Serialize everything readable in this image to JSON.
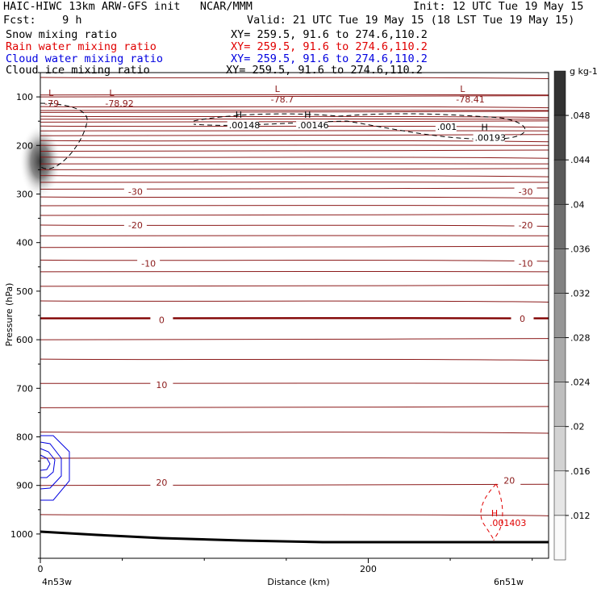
{
  "header": {
    "line1_left": "HAIC-HIWC 13km ARW-GFS init   NCAR/MMM",
    "line1_right": "Init: 12 UTC Tue 19 May 15",
    "line2_left": "Fcst:    9 h",
    "line2_right": "Valid: 21 UTC Tue 19 May 15 (18 LST Tue 19 May 15)"
  },
  "fields": [
    {
      "name": "Snow mixing ratio",
      "xy": "XY= 259.5, 91.6 to 274.6,110.2",
      "color": "#000000"
    },
    {
      "name": "Rain water mixing ratio",
      "xy": "XY= 259.5, 91.6 to 274.6,110.2",
      "color": "#e00000"
    },
    {
      "name": "Cloud water mixing ratio",
      "xy": "XY= 259.5, 91.6 to 274.6,110.2",
      "color": "#0000e0"
    },
    {
      "name": "Cloud ice mixing ratio",
      "xy": "XY= 259.5, 91.6 to 274.6,110.2",
      "color": "#000000"
    }
  ],
  "chart_data": {
    "type": "contour",
    "xlabel": "Distance (km)",
    "ylabel": "Pressure (hPa)",
    "xlim": [
      0,
      310
    ],
    "ylim": [
      1050,
      50
    ],
    "x_ticks": [
      0,
      200
    ],
    "y_ticks": [
      100,
      200,
      300,
      400,
      500,
      600,
      700,
      800,
      900,
      1000
    ],
    "x_endpoint_labels": [
      "4n53w",
      "6n51w"
    ],
    "colorbar": {
      "unit": "g kg-1",
      "labels": [
        ".012",
        ".016",
        ".02",
        ".024",
        ".028",
        ".032",
        ".036",
        ".04",
        ".044",
        ".048"
      ]
    },
    "temperature_labels": [
      {
        "text": "-30",
        "x": 58,
        "p": 295
      },
      {
        "text": "-30",
        "x": 296,
        "p": 295
      },
      {
        "text": "-20",
        "x": 58,
        "p": 364
      },
      {
        "text": "-20",
        "x": 296,
        "p": 364
      },
      {
        "text": "-10",
        "x": 66,
        "p": 443
      },
      {
        "text": "-10",
        "x": 296,
        "p": 443
      },
      {
        "text": "0",
        "x": 74,
        "p": 559
      },
      {
        "text": "0",
        "x": 294,
        "p": 557
      },
      {
        "text": "10",
        "x": 74,
        "p": 693
      },
      {
        "text": "20",
        "x": 74,
        "p": 894
      },
      {
        "text": "20",
        "x": 286,
        "p": 890
      }
    ],
    "pressure_lows": [
      {
        "letter": "L",
        "value": "-79",
        "x": 5,
        "p": 98
      },
      {
        "letter": "L",
        "value": "-78.92",
        "x": 42,
        "p": 98
      },
      {
        "letter": "L",
        "value": "-78.7",
        "x": 143,
        "p": 90
      },
      {
        "letter": "L",
        "value": "-78.41",
        "x": 256,
        "p": 90
      }
    ],
    "ice_maxima": [
      {
        "letter": "H",
        "value": ".00148",
        "x": 115,
        "p": 150
      },
      {
        "letter": "H",
        "value": ".00146",
        "x": 157,
        "p": 150
      },
      {
        "letter": "H",
        "value": ".00193",
        "x": 265,
        "p": 175
      },
      {
        "letter": "",
        "value": ".001",
        "x": 242,
        "p": 153
      }
    ],
    "rain_maxima": [
      {
        "letter": "H",
        "value": ".001403",
        "x": 274,
        "p": 970
      }
    ]
  }
}
